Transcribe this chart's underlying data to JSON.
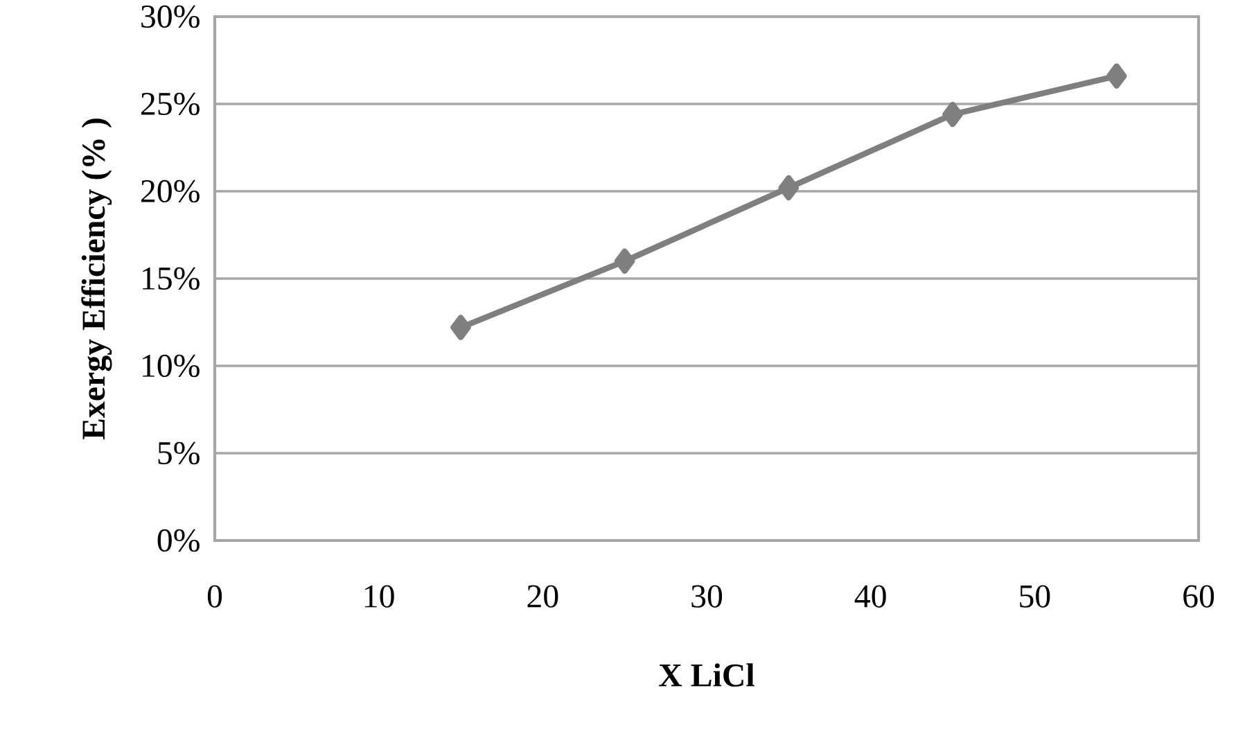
{
  "chart_data": {
    "type": "line",
    "xlabel": "X LiCl",
    "ylabel": "Exergy Efficiency (% )",
    "x": [
      15,
      25,
      35,
      45,
      55
    ],
    "series": [
      {
        "color": "#7f7f7f",
        "values": [
          12.2,
          16.0,
          20.2,
          24.4,
          26.6
        ]
      }
    ],
    "xlim": [
      0,
      60
    ],
    "xticks": [
      0,
      10,
      20,
      30,
      40,
      50,
      60
    ],
    "ylim": [
      0,
      30
    ],
    "yticks": [
      {
        "value": 0,
        "label": "0%"
      },
      {
        "value": 5,
        "label": "5%"
      },
      {
        "value": 10,
        "label": "10%"
      },
      {
        "value": 15,
        "label": "15%"
      },
      {
        "value": 20,
        "label": "20%"
      },
      {
        "value": 25,
        "label": "25%"
      },
      {
        "value": 30,
        "label": "30%"
      }
    ],
    "grid": "y",
    "marker": "diamond",
    "line_style": "solid"
  }
}
